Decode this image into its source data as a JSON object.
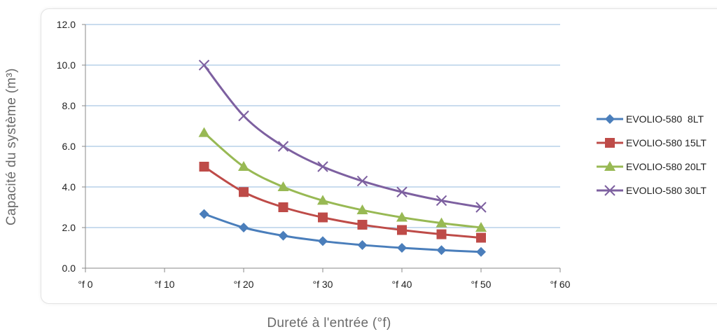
{
  "chart_data": {
    "type": "line",
    "xlabel": "Dureté à l'entrée (°f)",
    "ylabel": "Capacité du système (m³)",
    "xlim": [
      0,
      60
    ],
    "ylim": [
      0,
      12
    ],
    "x_ticks": [
      {
        "value": 0,
        "label": "°f 0"
      },
      {
        "value": 10,
        "label": "°f 10"
      },
      {
        "value": 20,
        "label": "°f 20"
      },
      {
        "value": 30,
        "label": "°f 30"
      },
      {
        "value": 40,
        "label": "°f 40"
      },
      {
        "value": 50,
        "label": "°f 50"
      },
      {
        "value": 60,
        "label": "°f 60"
      }
    ],
    "y_ticks": [
      {
        "value": 0,
        "label": "0.0"
      },
      {
        "value": 2,
        "label": "2.0"
      },
      {
        "value": 4,
        "label": "4.0"
      },
      {
        "value": 6,
        "label": "6.0"
      },
      {
        "value": 8,
        "label": "8.0"
      },
      {
        "value": 10,
        "label": "10.0"
      },
      {
        "value": 12,
        "label": "12.0"
      }
    ],
    "grid": "horizontal",
    "legend": "right",
    "x": [
      15,
      20,
      25,
      30,
      35,
      40,
      45,
      50
    ],
    "series": [
      {
        "name": "EVOLIO-580  8LT",
        "marker": "diamond",
        "color": "#4a7ebb",
        "values": [
          2.67,
          2.0,
          1.6,
          1.33,
          1.14,
          1.0,
          0.89,
          0.8
        ]
      },
      {
        "name": "EVOLIO-580 15LT",
        "marker": "square",
        "color": "#be4b48",
        "values": [
          5.0,
          3.75,
          3.0,
          2.5,
          2.14,
          1.88,
          1.67,
          1.5
        ]
      },
      {
        "name": "EVOLIO-580 20LT",
        "marker": "triangle",
        "color": "#98b954",
        "values": [
          6.67,
          5.0,
          4.0,
          3.33,
          2.86,
          2.5,
          2.22,
          2.0
        ]
      },
      {
        "name": "EVOLIO-580 30LT",
        "marker": "x",
        "color": "#7d60a0",
        "values": [
          10.0,
          7.5,
          6.0,
          5.0,
          4.29,
          3.75,
          3.33,
          3.0
        ]
      }
    ]
  }
}
